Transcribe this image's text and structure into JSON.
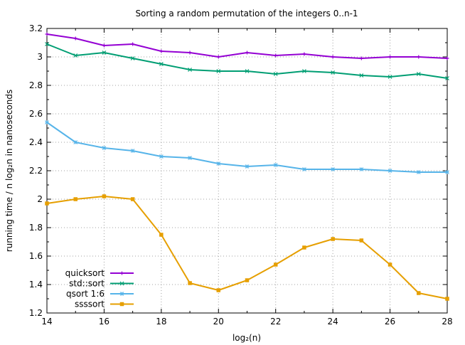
{
  "chart_data": {
    "type": "line",
    "title": "Sorting a random permutation of the integers 0..n-1",
    "xlabel": "log₂(n)",
    "ylabel": "running time / n log₂n in nanoseconds",
    "xlim": [
      14,
      28
    ],
    "ylim": [
      1.2,
      3.2
    ],
    "xticks": [
      14,
      16,
      18,
      20,
      22,
      24,
      26,
      28
    ],
    "yticks": [
      1.2,
      1.4,
      1.6,
      1.8,
      2,
      2.2,
      2.4,
      2.6,
      2.8,
      3,
      3.2
    ],
    "ytick_labels": [
      "1.2",
      "1.4",
      "1.6",
      "1.8",
      "2",
      "2.2",
      "2.4",
      "2.6",
      "2.8",
      "3",
      "3.2"
    ],
    "grid": true,
    "legend_position": "bottom-left",
    "x": [
      14,
      15,
      16,
      17,
      18,
      19,
      20,
      21,
      22,
      23,
      24,
      25,
      26,
      27,
      28
    ],
    "series": [
      {
        "name": "quicksort",
        "color": "#9400d3",
        "marker": "plus",
        "values": [
          3.16,
          3.13,
          3.08,
          3.09,
          3.04,
          3.03,
          3.0,
          3.03,
          3.01,
          3.02,
          3.0,
          2.99,
          3.0,
          3.0,
          2.99
        ]
      },
      {
        "name": "std::sort",
        "color": "#009e73",
        "marker": "x",
        "values": [
          3.09,
          3.01,
          3.03,
          2.99,
          2.95,
          2.91,
          2.9,
          2.9,
          2.88,
          2.9,
          2.89,
          2.87,
          2.86,
          2.88,
          2.85
        ]
      },
      {
        "name": "qsort 1:6",
        "color": "#56b4e9",
        "marker": "asterisk",
        "values": [
          2.54,
          2.4,
          2.36,
          2.34,
          2.3,
          2.29,
          2.25,
          2.23,
          2.24,
          2.21,
          2.21,
          2.21,
          2.2,
          2.19,
          2.19
        ]
      },
      {
        "name": "ssssort",
        "color": "#e69f00",
        "marker": "square",
        "values": [
          1.97,
          2.0,
          2.02,
          2.0,
          1.75,
          1.41,
          1.36,
          1.43,
          1.54,
          1.66,
          1.72,
          1.71,
          1.54,
          1.34,
          1.3
        ]
      }
    ]
  }
}
